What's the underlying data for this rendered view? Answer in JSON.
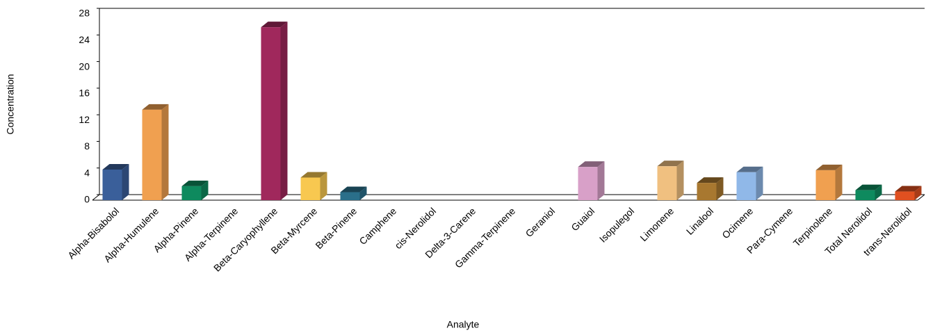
{
  "chart_data": {
    "type": "bar3d",
    "x_label": "Analyte",
    "y_label": "Concentration",
    "categories": [
      "Alpha-Bisabolol",
      "Alpha-Humulene",
      "Alpha-Pinene",
      "Alpha-Terpinene",
      "Beta-Caryophyllene",
      "Beta-Myrcene",
      "Beta-Pinene",
      "Camphene",
      "cis-Nerolidol",
      "Delta-3-Carene",
      "Gamma-Terpinene",
      "Geraniol",
      "Guaiol",
      "Isopulegol",
      "Limonene",
      "Linalool",
      "Ocimene",
      "Para-Cymene",
      "Terpinolene",
      "Total Nerolidol",
      "trans-Nerolidol"
    ],
    "values": [
      4.6,
      13.6,
      2.1,
      0,
      26,
      3.4,
      1.2,
      0,
      0,
      0,
      0,
      0,
      5.0,
      0,
      5.1,
      2.6,
      4.2,
      0,
      4.5,
      1.5,
      1.3
    ],
    "colors": [
      "#3a5f9a",
      "#f0a050",
      "#0e8a5e",
      "#888888",
      "#a0285c",
      "#f8c850",
      "#2a6f8a",
      "#888888",
      "#888888",
      "#888888",
      "#888888",
      "#888888",
      "#d8a0c8",
      "#888888",
      "#f0c080",
      "#a87830",
      "#90b8e8",
      "#888888",
      "#f0a050",
      "#0e8a5e",
      "#e05020"
    ],
    "ylim": [
      0,
      28
    ],
    "yticks": [
      0,
      4,
      8,
      12,
      16,
      20,
      24,
      28
    ]
  }
}
